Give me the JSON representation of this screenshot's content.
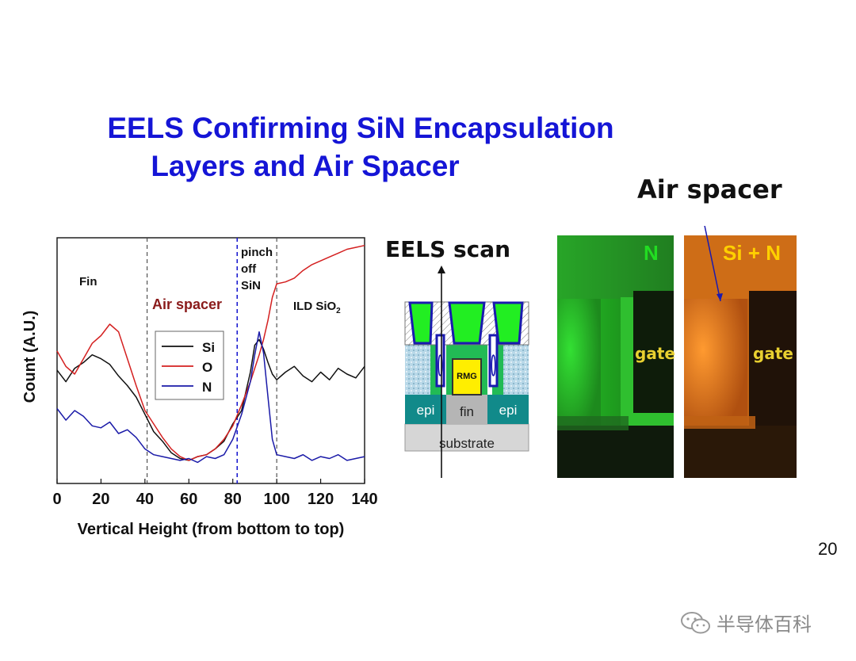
{
  "slide": {
    "title_line1": "EELS Confirming SiN Encapsulation",
    "title_line2": "Layers and Air Spacer",
    "page_number": "20",
    "watermark": "半导体百科"
  },
  "chart_data": {
    "type": "line",
    "xlabel": "Vertical Height (from bottom to top)",
    "ylabel": "Count (A.U.)",
    "xlim": [
      0,
      140
    ],
    "xticks": [
      0,
      20,
      40,
      60,
      80,
      100,
      120,
      140
    ],
    "grid": false,
    "legend_position": "center-left",
    "region_boundaries": [
      41,
      82,
      100
    ],
    "region_labels": {
      "fin": "Fin",
      "air_spacer": "Air spacer",
      "pinch": [
        "pinch",
        "off",
        "SiN"
      ],
      "ild": "ILD SiO",
      "ild_sub": "2"
    },
    "series": [
      {
        "name": "Si",
        "color": "#111111",
        "x": [
          0,
          4,
          8,
          12,
          16,
          20,
          24,
          28,
          32,
          36,
          40,
          44,
          48,
          52,
          56,
          60,
          64,
          68,
          72,
          76,
          80,
          84,
          88,
          90,
          92,
          94,
          96,
          98,
          100,
          104,
          108,
          112,
          116,
          120,
          124,
          128,
          132,
          136,
          140
        ],
        "y": [
          0.54,
          0.48,
          0.55,
          0.58,
          0.62,
          0.6,
          0.57,
          0.51,
          0.46,
          0.4,
          0.31,
          0.22,
          0.17,
          0.11,
          0.08,
          0.07,
          0.09,
          0.1,
          0.13,
          0.17,
          0.26,
          0.33,
          0.53,
          0.67,
          0.7,
          0.65,
          0.58,
          0.52,
          0.49,
          0.53,
          0.56,
          0.51,
          0.48,
          0.53,
          0.49,
          0.55,
          0.52,
          0.5,
          0.56
        ]
      },
      {
        "name": "O",
        "color": "#d42020",
        "x": [
          0,
          4,
          8,
          12,
          16,
          20,
          24,
          28,
          32,
          36,
          40,
          44,
          48,
          52,
          56,
          60,
          64,
          68,
          72,
          76,
          80,
          84,
          88,
          92,
          94,
          96,
          98,
          100,
          104,
          108,
          112,
          116,
          120,
          124,
          128,
          132,
          136,
          140
        ],
        "y": [
          0.64,
          0.56,
          0.52,
          0.6,
          0.68,
          0.72,
          0.78,
          0.74,
          0.6,
          0.46,
          0.33,
          0.26,
          0.19,
          0.13,
          0.09,
          0.07,
          0.09,
          0.1,
          0.13,
          0.18,
          0.25,
          0.36,
          0.48,
          0.62,
          0.7,
          0.8,
          0.92,
          0.99,
          1.0,
          1.02,
          1.06,
          1.09,
          1.11,
          1.13,
          1.15,
          1.17,
          1.18,
          1.19
        ]
      },
      {
        "name": "N",
        "color": "#1a1aa8",
        "x": [
          0,
          4,
          8,
          12,
          16,
          20,
          24,
          28,
          32,
          36,
          40,
          44,
          48,
          52,
          56,
          60,
          64,
          68,
          72,
          76,
          80,
          84,
          88,
          90,
          92,
          94,
          96,
          98,
          100,
          104,
          108,
          112,
          116,
          120,
          124,
          128,
          132,
          136,
          140
        ],
        "y": [
          0.34,
          0.28,
          0.33,
          0.3,
          0.25,
          0.24,
          0.27,
          0.21,
          0.23,
          0.19,
          0.13,
          0.1,
          0.09,
          0.08,
          0.07,
          0.08,
          0.06,
          0.09,
          0.08,
          0.1,
          0.18,
          0.31,
          0.48,
          0.62,
          0.74,
          0.63,
          0.4,
          0.18,
          0.1,
          0.09,
          0.08,
          0.1,
          0.07,
          0.09,
          0.08,
          0.1,
          0.07,
          0.08,
          0.09
        ]
      }
    ]
  },
  "schematic": {
    "heading": "EELS scan",
    "labels": {
      "epi_left": "epi",
      "fin": "fin",
      "epi_right": "epi",
      "rmg": "RMG",
      "substrate": "substrate"
    }
  },
  "eels_maps": {
    "heading": "Air spacer",
    "left_panel": {
      "label": "N",
      "gate_label": "gate",
      "color": "#22dd22"
    },
    "right_panel": {
      "label": "Si + N",
      "gate_label": "gate",
      "color": "#ff8a1a"
    }
  }
}
